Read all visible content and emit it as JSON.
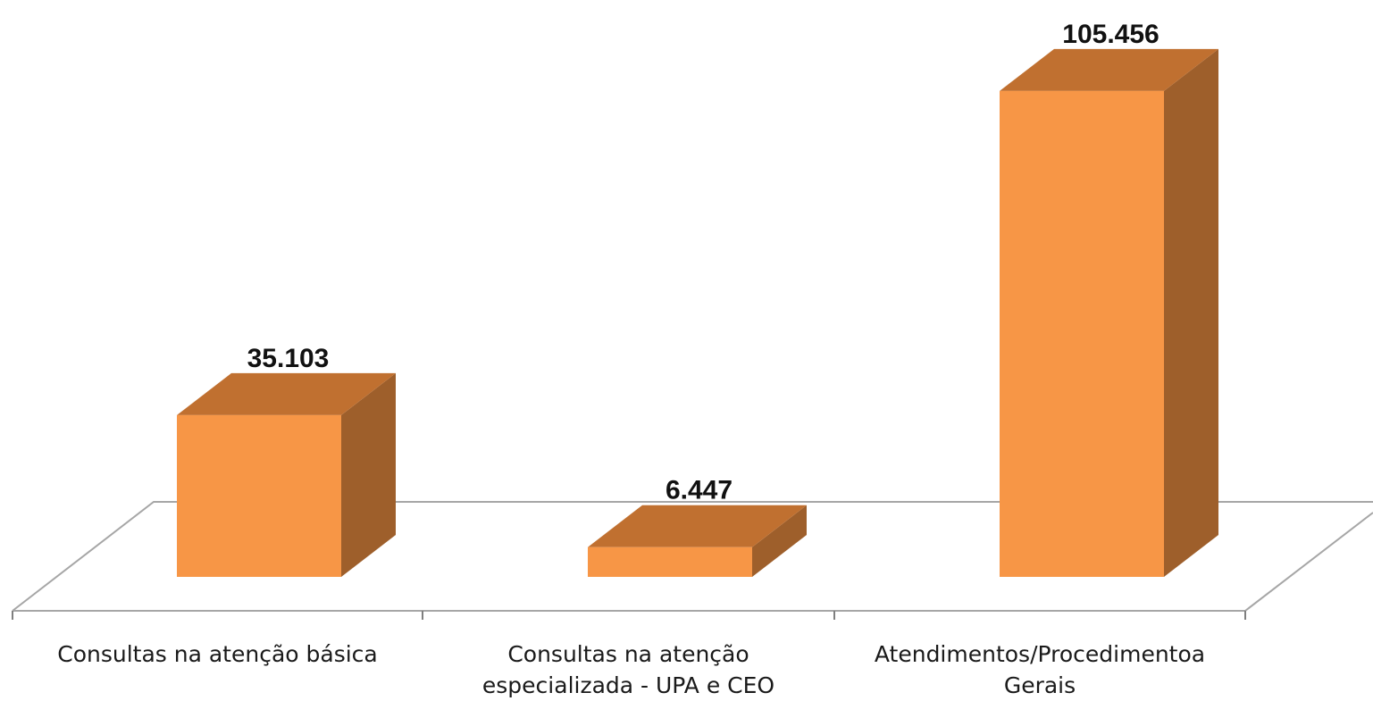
{
  "chart_data": {
    "type": "bar",
    "categories": [
      "Consultas na atenção básica",
      "Consultas  na atenção especializada - UPA e CEO",
      "Atendimentos/Procedimentoa Gerais"
    ],
    "category_lines": [
      [
        "Consultas na atenção básica"
      ],
      [
        "Consultas  na atenção",
        "especializada - UPA e CEO"
      ],
      [
        "Atendimentos/Procedimentoa",
        "Gerais"
      ]
    ],
    "values": [
      35103,
      6447,
      105456
    ],
    "data_labels": [
      "35.103",
      "6.447",
      "105.456"
    ],
    "title": "",
    "xlabel": "",
    "ylabel": "",
    "ylim": [
      0,
      110000
    ],
    "grid": false,
    "legend": "none",
    "three_d": true,
    "colors": {
      "front": "#F79646",
      "top": "#C07030",
      "side": "#9E5F2B",
      "floor_line": "#a6a6a6",
      "axis_line": "#7f7f7f"
    }
  }
}
